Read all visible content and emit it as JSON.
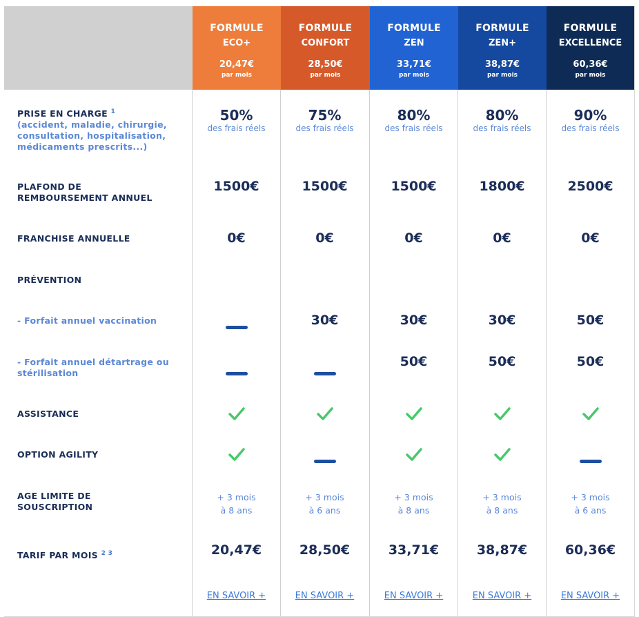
{
  "formulas": [
    {
      "line1": "FORMULE",
      "line2": "ECO+",
      "price": "20,47€",
      "per": "par mois",
      "color": "#ee7d3b"
    },
    {
      "line1": "FORMULE",
      "line2": "CONFORT",
      "price": "28,50€",
      "per": "par mois",
      "color": "#d6592a"
    },
    {
      "line1": "FORMULE",
      "line2": "ZEN",
      "price": "33,71€",
      "per": "par mois",
      "color": "#2163d2"
    },
    {
      "line1": "FORMULE",
      "line2": "ZEN+",
      "price": "38,87€",
      "per": "par mois",
      "color": "#1549a0"
    },
    {
      "line1": "FORMULE",
      "line2": "EXCELLENCE",
      "price": "60,36€",
      "per": "par mois",
      "color": "#0e2b55"
    }
  ],
  "labels": {
    "prise": "PRISE EN CHARGE",
    "prise_sup": "1",
    "prise_detail_1": "(accident, maladie, chirurgie,",
    "prise_detail_2": "consultation, hospitalisation,",
    "prise_detail_3": "médicaments prescrits...)",
    "plafond_1": "PLAFOND DE",
    "plafond_2": "REMBOURSEMENT ANNUEL",
    "franchise": "FRANCHISE ANNUELLE",
    "prevention": "PRÉVENTION",
    "vaccination": "- Forfait annuel vaccination",
    "detartrage_1": "- Forfait annuel détartrage ou",
    "detartrage_2": "stérilisation",
    "assistance": "ASSISTANCE",
    "agility": "OPTION AGILITY",
    "age_1": "AGE LIMITE DE",
    "age_2": "SOUSCRIPTION",
    "tarif": "TARIF PAR MOIS",
    "tarif_sup": "2 3"
  },
  "rows": {
    "prise_pct": [
      "50%",
      "75%",
      "80%",
      "80%",
      "90%"
    ],
    "prise_frais": [
      "des frais réels",
      "des frais réels",
      "des frais réels",
      "des frais réels",
      "des frais réels"
    ],
    "plafond": [
      "1500€",
      "1500€",
      "1500€",
      "1800€",
      "2500€"
    ],
    "franchise": [
      "0€",
      "0€",
      "0€",
      "0€",
      "0€"
    ],
    "vaccination": [
      "—",
      "30€",
      "30€",
      "30€",
      "50€"
    ],
    "detartrage": [
      "—",
      "—",
      "50€",
      "50€",
      "50€"
    ],
    "assistance": [
      "check",
      "check",
      "check",
      "check",
      "check"
    ],
    "agility": [
      "check",
      "—",
      "check",
      "check",
      "—"
    ],
    "age_1": [
      "+ 3 mois",
      "+ 3 mois",
      "+ 3 mois",
      "+ 3 mois",
      "+ 3 mois"
    ],
    "age_2": [
      "à 8 ans",
      "à 6 ans",
      "à 8 ans",
      "à 8 ans",
      "à 6 ans"
    ],
    "tarif": [
      "20,47€",
      "28,50€",
      "33,71€",
      "38,87€",
      "60,36€"
    ],
    "link": [
      "EN SAVOIR +",
      "EN SAVOIR +",
      "EN SAVOIR +",
      "EN SAVOIR +",
      "EN SAVOIR +"
    ]
  },
  "colors": {
    "check": "#47c96a",
    "dash": "#1d4fa0",
    "dark_text": "#1b2d57",
    "light_text": "#5b88d6"
  }
}
